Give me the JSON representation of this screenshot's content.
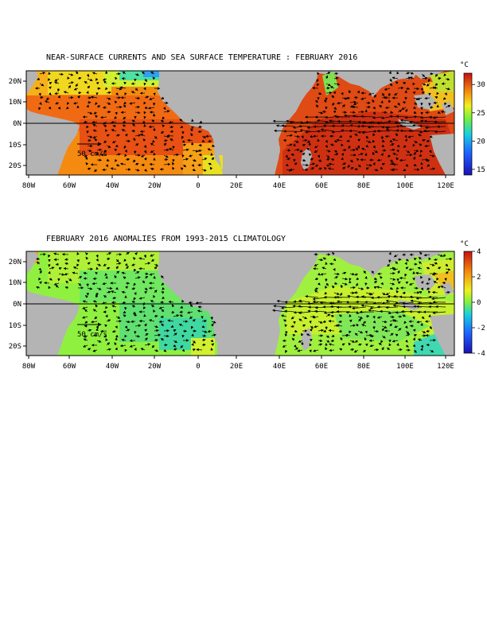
{
  "chart_data": [
    {
      "type": "heatmap",
      "title": "NEAR-SURFACE CURRENTS AND SEA SURFACE TEMPERATURE : FEBRUARY 2016",
      "x_range": [
        -80,
        125
      ],
      "y_range": [
        -25,
        25
      ],
      "x_ticks": [
        "80W",
        "60W",
        "40W",
        "20W",
        "0",
        "20E",
        "40E",
        "60E",
        "80E",
        "100E",
        "120E"
      ],
      "y_ticks": [
        "20N",
        "10N",
        "0N",
        "10S",
        "20S"
      ],
      "colorbar": {
        "unit": "°C",
        "min": 14,
        "max": 32,
        "ticks": [
          15,
          20,
          25,
          30
        ]
      },
      "reference_vector": "50 cm/s",
      "grid": false
    },
    {
      "type": "heatmap",
      "title": "FEBRUARY 2016 ANOMALIES FROM 1993-2015 CLIMATOLOGY",
      "x_range": [
        -80,
        125
      ],
      "y_range": [
        -25,
        25
      ],
      "x_ticks": [
        "80W",
        "60W",
        "40W",
        "20W",
        "0",
        "20E",
        "40E",
        "60E",
        "80E",
        "100E",
        "120E"
      ],
      "y_ticks": [
        "20N",
        "10N",
        "0N",
        "10S",
        "20S"
      ],
      "colorbar": {
        "unit": "°C",
        "min": -4,
        "max": 4,
        "ticks": [
          4,
          2,
          0,
          -2,
          -4
        ]
      },
      "reference_vector": "50 cm/s",
      "grid": false
    }
  ]
}
